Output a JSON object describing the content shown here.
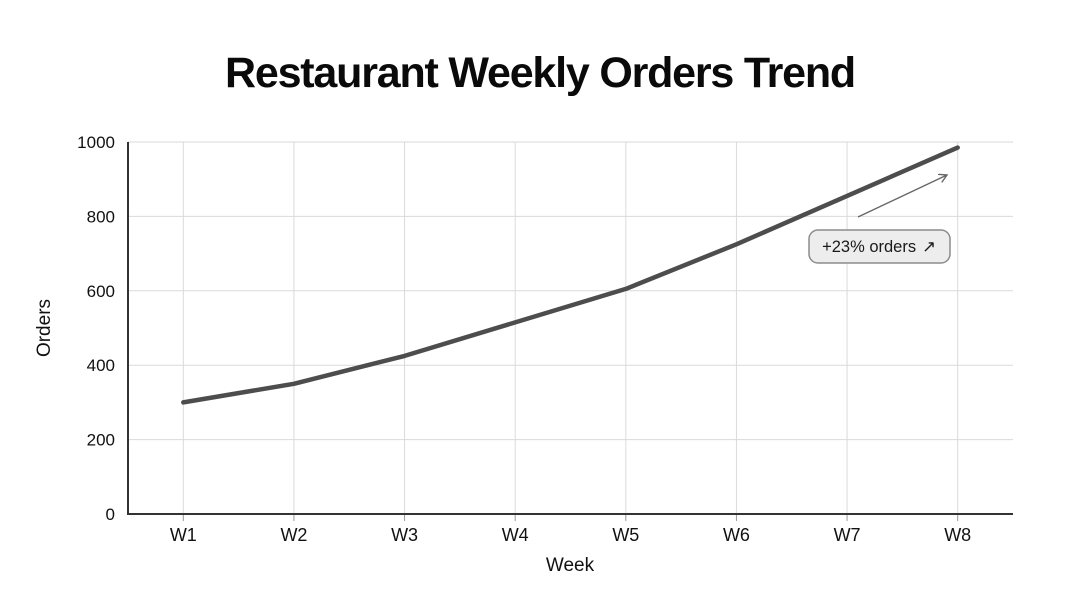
{
  "chart_data": {
    "type": "line",
    "title": "Restaurant Weekly Orders Trend",
    "xlabel": "Week",
    "ylabel": "Orders",
    "categories": [
      "W1",
      "W2",
      "W3",
      "W4",
      "W5",
      "W6",
      "W7",
      "W8"
    ],
    "values": [
      300,
      350,
      425,
      515,
      605,
      725,
      855,
      985
    ],
    "series_name": "Orders",
    "ylim": [
      0,
      1000
    ],
    "yticks": [
      0,
      200,
      400,
      600,
      800,
      1000
    ],
    "grid": true,
    "legend": "none",
    "annotation": {
      "text": "+23% orders ↗",
      "label": "+23% orders",
      "icon": "↗",
      "icon_name": "trend-up-arrow-icon"
    },
    "colors": {
      "background": "#ffffff",
      "title_text": "#0a0a0a",
      "line": "#4d4d4d",
      "grid": "#dadada",
      "axis": "#333333",
      "tick_text": "#111111",
      "x_tick_mark": "#999999",
      "annotation_bg": "#ededed",
      "annotation_border": "#8c8c8c",
      "annotation_text": "#1a1a1a",
      "annotation_arrow": "#666666"
    }
  }
}
